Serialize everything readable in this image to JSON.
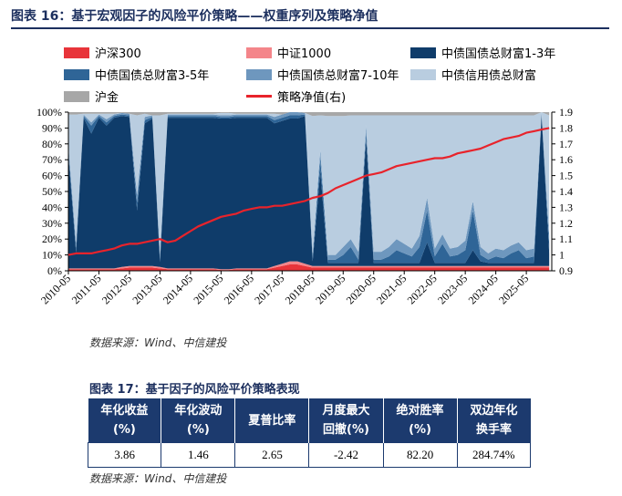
{
  "figure1": {
    "title": "图表 16：基于宏观因子的风险平价策略——权重序列及策略净值",
    "source": "数据来源：Wind、中信建投"
  },
  "legend": [
    {
      "label": "沪深300",
      "color": "#e8343a",
      "kind": "area"
    },
    {
      "label": "中证1000",
      "color": "#f4858a",
      "kind": "area"
    },
    {
      "label": "中债国债总财富1-3年",
      "color": "#0f3c6a",
      "kind": "area"
    },
    {
      "label": "中债国债总财富3-5年",
      "color": "#2f6597",
      "kind": "area"
    },
    {
      "label": "中债国债总财富7-10年",
      "color": "#6e97be",
      "kind": "area"
    },
    {
      "label": "中债信用债总财富",
      "color": "#b9cde0",
      "kind": "area"
    },
    {
      "label": "沪金",
      "color": "#a7a7a7",
      "kind": "area"
    },
    {
      "label": "策略净值(右)",
      "color": "#e8232b",
      "kind": "line"
    }
  ],
  "chart_data": {
    "type": "area",
    "stacked": true,
    "x_start": "2010-05",
    "x_end": "2026-03",
    "x_ticks": [
      "2010-05",
      "2011-05",
      "2012-05",
      "2013-05",
      "2014-05",
      "2015-05",
      "2016-05",
      "2017-05",
      "2018-05",
      "2019-05",
      "2020-05",
      "2021-05",
      "2022-05",
      "2023-05",
      "2024-05",
      "2025-05"
    ],
    "y_left_ticks": [
      "0%",
      "10%",
      "20%",
      "30%",
      "40%",
      "50%",
      "60%",
      "70%",
      "80%",
      "90%",
      "100%"
    ],
    "y_left_range": [
      0,
      1
    ],
    "y_right_ticks": [
      "0.9",
      "1",
      "1.1",
      "1.2",
      "1.3",
      "1.4",
      "1.5",
      "1.6",
      "1.7",
      "1.8",
      "1.9"
    ],
    "y_right_range": [
      0.9,
      1.9
    ],
    "dates": [
      "2010-05",
      "2010-08",
      "2010-11",
      "2011-02",
      "2011-05",
      "2011-08",
      "2011-11",
      "2012-02",
      "2012-05",
      "2012-08",
      "2012-11",
      "2013-02",
      "2013-05",
      "2013-08",
      "2013-11",
      "2014-02",
      "2014-05",
      "2014-08",
      "2014-11",
      "2015-02",
      "2015-05",
      "2015-08",
      "2015-11",
      "2016-02",
      "2016-05",
      "2016-08",
      "2016-11",
      "2017-02",
      "2017-05",
      "2017-08",
      "2017-11",
      "2018-02",
      "2018-05",
      "2018-08",
      "2018-11",
      "2019-02",
      "2019-05",
      "2019-08",
      "2019-11",
      "2020-02",
      "2020-05",
      "2020-08",
      "2020-11",
      "2021-02",
      "2021-05",
      "2021-08",
      "2021-11",
      "2022-02",
      "2022-05",
      "2022-08",
      "2022-11",
      "2023-02",
      "2023-05",
      "2023-08",
      "2023-11",
      "2024-02",
      "2024-05",
      "2024-08",
      "2024-11",
      "2025-02",
      "2025-05",
      "2025-08",
      "2025-11",
      "2026-02"
    ],
    "series": [
      {
        "name": "沪深300",
        "values": [
          0.01,
          0.01,
          0.01,
          0.01,
          0.01,
          0.01,
          0.01,
          0.015,
          0.02,
          0.02,
          0.02,
          0.02,
          0.015,
          0.01,
          0.01,
          0.01,
          0.01,
          0.01,
          0.01,
          0.01,
          0.005,
          0.005,
          0.01,
          0.01,
          0.01,
          0.01,
          0.01,
          0.02,
          0.03,
          0.04,
          0.04,
          0.03,
          0.02,
          0.02,
          0.02,
          0.02,
          0.02,
          0.02,
          0.02,
          0.02,
          0.02,
          0.02,
          0.02,
          0.02,
          0.02,
          0.02,
          0.02,
          0.02,
          0.02,
          0.02,
          0.02,
          0.02,
          0.02,
          0.02,
          0.02,
          0.02,
          0.02,
          0.02,
          0.02,
          0.02,
          0.02,
          0.02,
          0.02,
          0.02
        ]
      },
      {
        "name": "中证1000",
        "values": [
          0.005,
          0.005,
          0.005,
          0.005,
          0.005,
          0.005,
          0.005,
          0.01,
          0.01,
          0.01,
          0.01,
          0.01,
          0.01,
          0.005,
          0.005,
          0.005,
          0.005,
          0.005,
          0.005,
          0.005,
          0.005,
          0.005,
          0.005,
          0.005,
          0.005,
          0.005,
          0.005,
          0.01,
          0.015,
          0.02,
          0.02,
          0.015,
          0.01,
          0.01,
          0.01,
          0.01,
          0.01,
          0.01,
          0.01,
          0.01,
          0.01,
          0.01,
          0.01,
          0.01,
          0.01,
          0.01,
          0.01,
          0.01,
          0.01,
          0.01,
          0.01,
          0.01,
          0.01,
          0.01,
          0.01,
          0.01,
          0.01,
          0.01,
          0.01,
          0.01,
          0.01,
          0.01,
          0.01,
          0.01
        ]
      },
      {
        "name": "中债国债总财富1-3年",
        "values": [
          0.72,
          0.1,
          0.95,
          0.85,
          0.95,
          0.9,
          0.95,
          0.95,
          0.94,
          0.35,
          0.9,
          0.93,
          0.03,
          0.95,
          0.95,
          0.95,
          0.95,
          0.95,
          0.95,
          0.95,
          0.95,
          0.95,
          0.95,
          0.95,
          0.95,
          0.95,
          0.95,
          0.9,
          0.9,
          0.9,
          0.9,
          0.93,
          0.03,
          0.6,
          0.02,
          0.02,
          0.02,
          0.02,
          0.02,
          0.8,
          0.02,
          0.02,
          0.02,
          0.02,
          0.02,
          0.02,
          0.02,
          0.15,
          0.02,
          0.02,
          0.02,
          0.02,
          0.02,
          0.1,
          0.03,
          0.02,
          0.02,
          0.02,
          0.02,
          0.02,
          0.02,
          0.02,
          0.95,
          0.08
        ]
      },
      {
        "name": "中债国债总财富3-5年",
        "values": [
          0.03,
          0.03,
          0.01,
          0.05,
          0.01,
          0.02,
          0.01,
          0.01,
          0.01,
          0.05,
          0.02,
          0.01,
          0.02,
          0.01,
          0.01,
          0.01,
          0.01,
          0.01,
          0.01,
          0.01,
          0.01,
          0.01,
          0.01,
          0.01,
          0.01,
          0.01,
          0.01,
          0.02,
          0.02,
          0.02,
          0.02,
          0.01,
          0.02,
          0.08,
          0.02,
          0.02,
          0.05,
          0.1,
          0.02,
          0.05,
          0.02,
          0.02,
          0.04,
          0.08,
          0.06,
          0.04,
          0.1,
          0.2,
          0.04,
          0.12,
          0.04,
          0.05,
          0.08,
          0.25,
          0.04,
          0.02,
          0.04,
          0.03,
          0.06,
          0.08,
          0.03,
          0.04,
          0.01,
          0.06
        ]
      },
      {
        "name": "中债国债总财富7-10年",
        "values": [
          0.03,
          0.03,
          0.01,
          0.02,
          0.01,
          0.02,
          0.01,
          0.01,
          0.01,
          0.05,
          0.02,
          0.01,
          0.03,
          0.01,
          0.01,
          0.01,
          0.01,
          0.01,
          0.01,
          0.01,
          0.01,
          0.01,
          0.01,
          0.01,
          0.01,
          0.01,
          0.01,
          0.02,
          0.02,
          0.02,
          0.02,
          0.01,
          0.03,
          0.05,
          0.03,
          0.03,
          0.05,
          0.05,
          0.05,
          0.04,
          0.05,
          0.05,
          0.06,
          0.07,
          0.06,
          0.05,
          0.07,
          0.08,
          0.05,
          0.06,
          0.05,
          0.05,
          0.06,
          0.06,
          0.05,
          0.04,
          0.05,
          0.05,
          0.05,
          0.05,
          0.05,
          0.05,
          0.01,
          0.05
        ]
      },
      {
        "name": "中债信用债总财富",
        "values": [
          0.19,
          0.81,
          0.005,
          0.055,
          0.005,
          0.035,
          0.005,
          0.0,
          0.0,
          0.5,
          0.02,
          0.0,
          0.875,
          0.005,
          0.005,
          0.005,
          0.005,
          0.005,
          0.005,
          0.005,
          0.015,
          0.015,
          0.005,
          0.005,
          0.005,
          0.005,
          0.005,
          0.02,
          0.0,
          0.0,
          0.0,
          0.0,
          0.865,
          0.22,
          0.875,
          0.875,
          0.825,
          0.78,
          0.86,
          0.06,
          0.86,
          0.86,
          0.83,
          0.78,
          0.81,
          0.84,
          0.76,
          0.52,
          0.84,
          0.75,
          0.84,
          0.83,
          0.79,
          0.54,
          0.83,
          0.87,
          0.84,
          0.85,
          0.82,
          0.8,
          0.85,
          0.84,
          0.0,
          0.76
        ]
      },
      {
        "name": "沪金",
        "values": [
          0.015,
          0.015,
          0.01,
          0.01,
          0.01,
          0.015,
          0.01,
          0.015,
          0.02,
          0.02,
          0.02,
          0.02,
          0.02,
          0.015,
          0.015,
          0.015,
          0.015,
          0.015,
          0.015,
          0.015,
          0.015,
          0.015,
          0.015,
          0.015,
          0.015,
          0.015,
          0.015,
          0.02,
          0.015,
          0.0,
          0.0,
          0.005,
          0.025,
          0.02,
          0.025,
          0.025,
          0.025,
          0.02,
          0.02,
          0.02,
          0.02,
          0.02,
          0.02,
          0.02,
          0.02,
          0.02,
          0.02,
          0.02,
          0.02,
          0.02,
          0.02,
          0.02,
          0.02,
          0.02,
          0.02,
          0.02,
          0.02,
          0.02,
          0.02,
          0.02,
          0.02,
          0.02,
          0.01,
          0.02
        ]
      }
    ],
    "line": {
      "name": "策略净值(右)",
      "axis": "right",
      "values": [
        1.0,
        1.01,
        1.01,
        1.01,
        1.02,
        1.03,
        1.04,
        1.06,
        1.07,
        1.07,
        1.08,
        1.09,
        1.1,
        1.08,
        1.09,
        1.12,
        1.15,
        1.18,
        1.2,
        1.22,
        1.24,
        1.25,
        1.26,
        1.28,
        1.29,
        1.3,
        1.3,
        1.31,
        1.31,
        1.32,
        1.33,
        1.34,
        1.36,
        1.37,
        1.39,
        1.42,
        1.44,
        1.46,
        1.48,
        1.5,
        1.51,
        1.52,
        1.54,
        1.56,
        1.57,
        1.58,
        1.59,
        1.6,
        1.61,
        1.61,
        1.62,
        1.64,
        1.65,
        1.66,
        1.67,
        1.69,
        1.71,
        1.73,
        1.74,
        1.75,
        1.77,
        1.78,
        1.79,
        1.8
      ]
    }
  },
  "table": {
    "title": "图表 17：基于因子的风险平价策略表现",
    "headers": [
      [
        "年化收益",
        "(%)"
      ],
      [
        "年化波动",
        "(%)"
      ],
      [
        "夏普比率"
      ],
      [
        "月度最大",
        "回撤(%)"
      ],
      [
        "绝对胜率",
        "(%)"
      ],
      [
        "双边年化",
        "换手率"
      ]
    ],
    "rows": [
      [
        "3.86",
        "1.46",
        "2.65",
        "-2.42",
        "82.20",
        "284.74%"
      ]
    ],
    "source": "数据来源：Wind、中信建投"
  }
}
